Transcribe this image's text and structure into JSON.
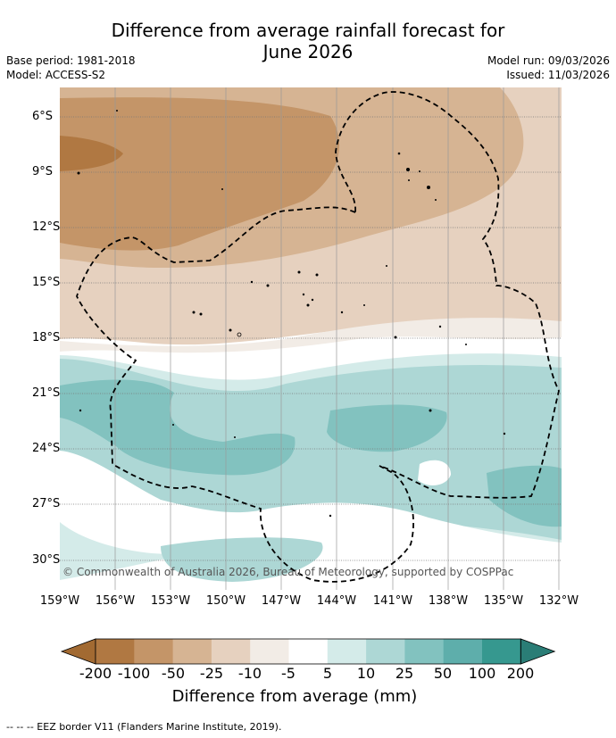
{
  "title": {
    "line1": "Difference from average rainfall forecast for",
    "line2": "June 2026"
  },
  "meta": {
    "base_period": "Base period: 1981-2018",
    "model": "Model: ACCESS-S2",
    "model_run": "Model run: 09/03/2026",
    "issued": "Issued: 11/03/2026"
  },
  "map": {
    "lat_labels": [
      "6°S",
      "9°S",
      "12°S",
      "15°S",
      "18°S",
      "21°S",
      "24°S",
      "27°S",
      "30°S"
    ],
    "lon_labels": [
      "159°W",
      "156°W",
      "153°W",
      "150°W",
      "147°W",
      "144°W",
      "141°W",
      "138°W",
      "135°W",
      "132°W"
    ],
    "copyright": "© Commonwealth of Australia 2026, Bureau of Meteorology, supported by COSPPac"
  },
  "legend": {
    "tick_labels": [
      "-200",
      "-100",
      "-50",
      "-25",
      "-10",
      "-5",
      "5",
      "10",
      "25",
      "50",
      "100",
      "200"
    ],
    "colors": [
      "#a26a32",
      "#b07842",
      "#c49568",
      "#d6b493",
      "#e6d1bf",
      "#f2ece6",
      "#ffffff",
      "#d4ebe9",
      "#add7d5",
      "#82c2bf",
      "#5eaeab",
      "#36988f",
      "#2a7d76"
    ],
    "title": "Difference from average (mm)"
  },
  "footnote": "--  --  -- EEZ border V11 (Flanders Marine Institute, 2019)."
}
